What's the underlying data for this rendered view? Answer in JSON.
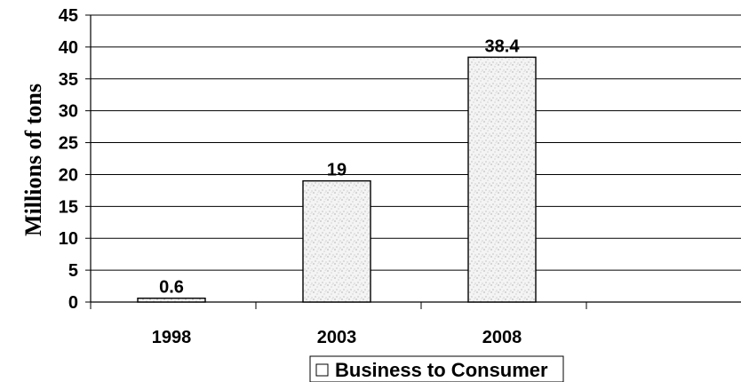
{
  "chart_data": {
    "type": "bar",
    "categories": [
      "1998",
      "2003",
      "2008"
    ],
    "series": [
      {
        "name": "Business to Consumer",
        "values": [
          0.6,
          19,
          38.4
        ]
      }
    ],
    "data_labels": [
      "0.6",
      "19",
      "38.4"
    ],
    "ylabel": "Millions of tons",
    "xlabel": "",
    "ylim": [
      0,
      45
    ],
    "yticks": [
      0,
      5,
      10,
      15,
      20,
      25,
      30,
      35,
      40,
      45
    ],
    "grid": true,
    "legend_position": "bottom",
    "legend_label": "Business to Consumer",
    "bar_fill": "stippled gray"
  }
}
